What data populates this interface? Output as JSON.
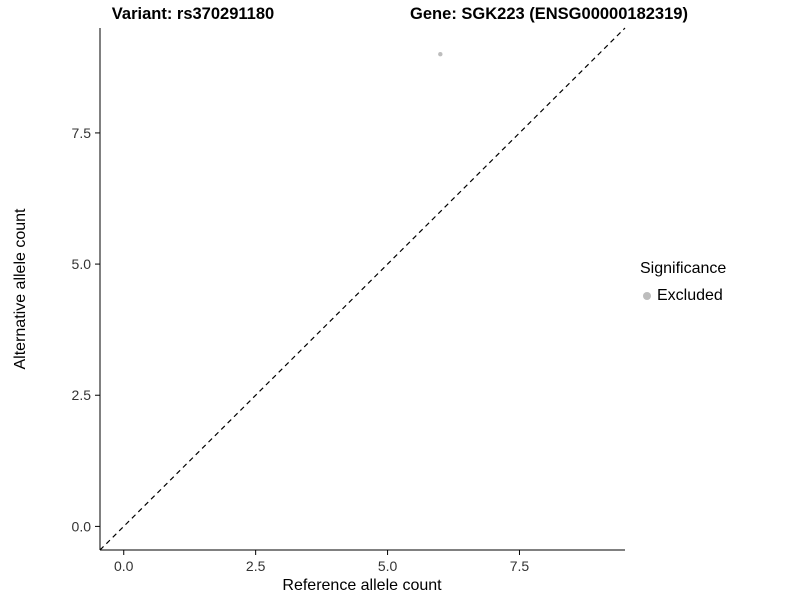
{
  "chart_data": {
    "type": "scatter",
    "title_left": "Variant: rs370291180",
    "title_right": "Gene: SGK223 (ENSG00000182319)",
    "xlabel": "Reference allele count",
    "ylabel": "Alternative allele count",
    "xlim": [
      -0.45,
      9.5
    ],
    "ylim": [
      -0.45,
      9.5
    ],
    "xticks": [
      0,
      2.5,
      5,
      7.5
    ],
    "xtick_labels": [
      "0.0",
      "2.5",
      "5.0",
      "7.5"
    ],
    "yticks": [
      0,
      2.5,
      5,
      7.5
    ],
    "ytick_labels": [
      "0.0",
      "2.5",
      "5.0",
      "7.5"
    ],
    "grid": false,
    "panel_background": "#ffffff",
    "axis_color": "#000000",
    "tick_label_color": "#333333",
    "reference_line": {
      "type": "identity-dashed",
      "x1": -0.45,
      "y1": -0.45,
      "x2": 9.5,
      "y2": 9.5,
      "color": "#000000"
    },
    "series": [
      {
        "name": "Excluded",
        "color": "#bdbdbd",
        "points": [
          {
            "x": 6,
            "y": 9
          }
        ]
      }
    ],
    "point_radius": 2.2,
    "legend": {
      "position": "right",
      "title": "Significance",
      "items": [
        {
          "label": "Excluded",
          "color": "#bdbdbd"
        }
      ]
    }
  }
}
